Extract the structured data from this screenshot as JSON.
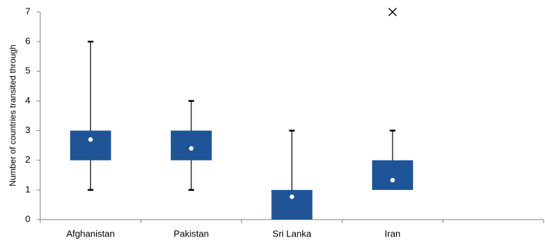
{
  "chart_data": {
    "type": "box",
    "title": "",
    "xlabel": "",
    "ylabel": "Number of countries  transited through",
    "ylim": [
      0,
      7
    ],
    "yticks": [
      0,
      1,
      2,
      3,
      4,
      5,
      6,
      7
    ],
    "grid": false,
    "legend": "none",
    "categories": [
      "Afghanistan",
      "Pakistan",
      "Sri Lanka",
      "Iran"
    ],
    "boxes": [
      {
        "category": "Afghanistan",
        "whisker_low": 1,
        "q1": 2,
        "q3": 3,
        "whisker_high": 6,
        "mean": 2.7,
        "outliers": []
      },
      {
        "category": "Pakistan",
        "whisker_low": 1,
        "q1": 2,
        "q3": 3,
        "whisker_high": 4,
        "mean": 2.4,
        "outliers": []
      },
      {
        "category": "Sri Lanka",
        "whisker_low": 0,
        "q1": 0,
        "q3": 1,
        "whisker_high": 3,
        "mean": 0.77,
        "outliers": []
      },
      {
        "category": "Iran",
        "whisker_low": 1,
        "q1": 1,
        "q3": 2,
        "whisker_high": 3,
        "mean": 1.33,
        "outliers": [
          7
        ]
      }
    ],
    "colors": {
      "box": "#1F5596",
      "whisker": "#000000",
      "mean_marker": "#ffffff",
      "outlier": "#000000",
      "axis": "#7F7F7F"
    }
  }
}
